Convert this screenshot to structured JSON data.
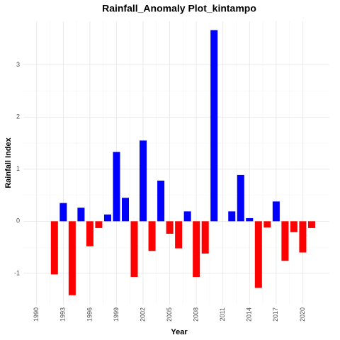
{
  "chart_data": {
    "type": "bar",
    "title": "Rainfall_Anomaly Plot_kintampo",
    "x_label": "Year",
    "y_label": "Rainfall Index",
    "x": [
      1992,
      1993,
      1994,
      1995,
      1996,
      1997,
      1998,
      1999,
      2000,
      2001,
      2002,
      2003,
      2004,
      2005,
      2006,
      2007,
      2008,
      2009,
      2010,
      2011,
      2012,
      2013,
      2014,
      2015,
      2016,
      2017,
      2018,
      2019,
      2020,
      2021
    ],
    "values": [
      -1.02,
      0.35,
      -1.42,
      0.26,
      -0.48,
      -0.13,
      0.13,
      1.33,
      0.45,
      -1.07,
      1.55,
      -0.57,
      0.78,
      -0.24,
      -0.52,
      0.19,
      -1.07,
      -0.62,
      3.67,
      0,
      0.19,
      0.89,
      0.06,
      -1.28,
      -0.12,
      0.38,
      -0.76,
      -0.21,
      -0.6,
      -0.13
    ],
    "colors": {
      "positive": "blue",
      "negative": "red"
    },
    "xlim": [
      1988.5,
      2023
    ],
    "xticks": [
      1990,
      1993,
      1996,
      1999,
      2002,
      2005,
      2008,
      2011,
      2014,
      2017,
      2020
    ],
    "ylim": [
      -1.6,
      3.84
    ],
    "yticks": [
      -1,
      0,
      1,
      2,
      3
    ],
    "grid": true
  }
}
